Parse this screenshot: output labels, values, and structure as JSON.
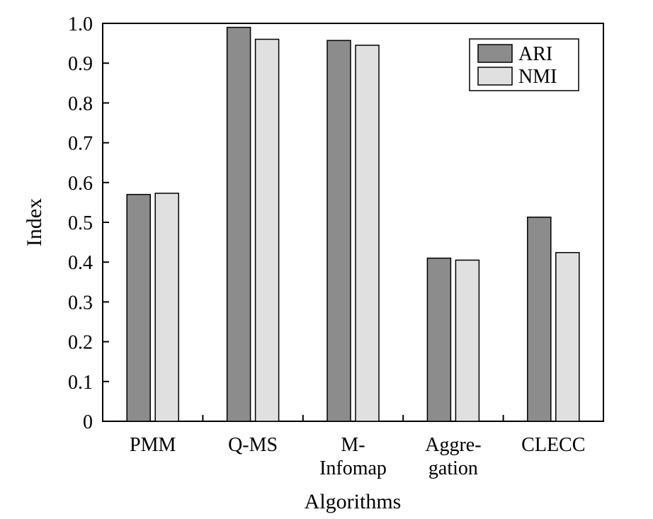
{
  "chart_data": {
    "type": "bar",
    "categories": [
      [
        "PMM"
      ],
      [
        "Q-MS"
      ],
      [
        "M-",
        "Infomap"
      ],
      [
        "Aggre-",
        "gation"
      ],
      [
        "CLECC"
      ]
    ],
    "series": [
      {
        "name": "ARI",
        "color": "#8c8c8c",
        "values": [
          0.57,
          0.99,
          0.957,
          0.41,
          0.513
        ]
      },
      {
        "name": "NMI",
        "color": "#e0e0e0",
        "values": [
          0.573,
          0.96,
          0.945,
          0.405,
          0.424
        ]
      }
    ],
    "yticks": [
      "0",
      "0.1",
      "0.2",
      "0.3",
      "0.4",
      "0.5",
      "0.6",
      "0.7",
      "0.8",
      "0.9",
      "1.0"
    ],
    "ylim": [
      0,
      1.0
    ],
    "xlabel": "Algorithms",
    "ylabel": "Index",
    "legend_position": "top-right"
  }
}
